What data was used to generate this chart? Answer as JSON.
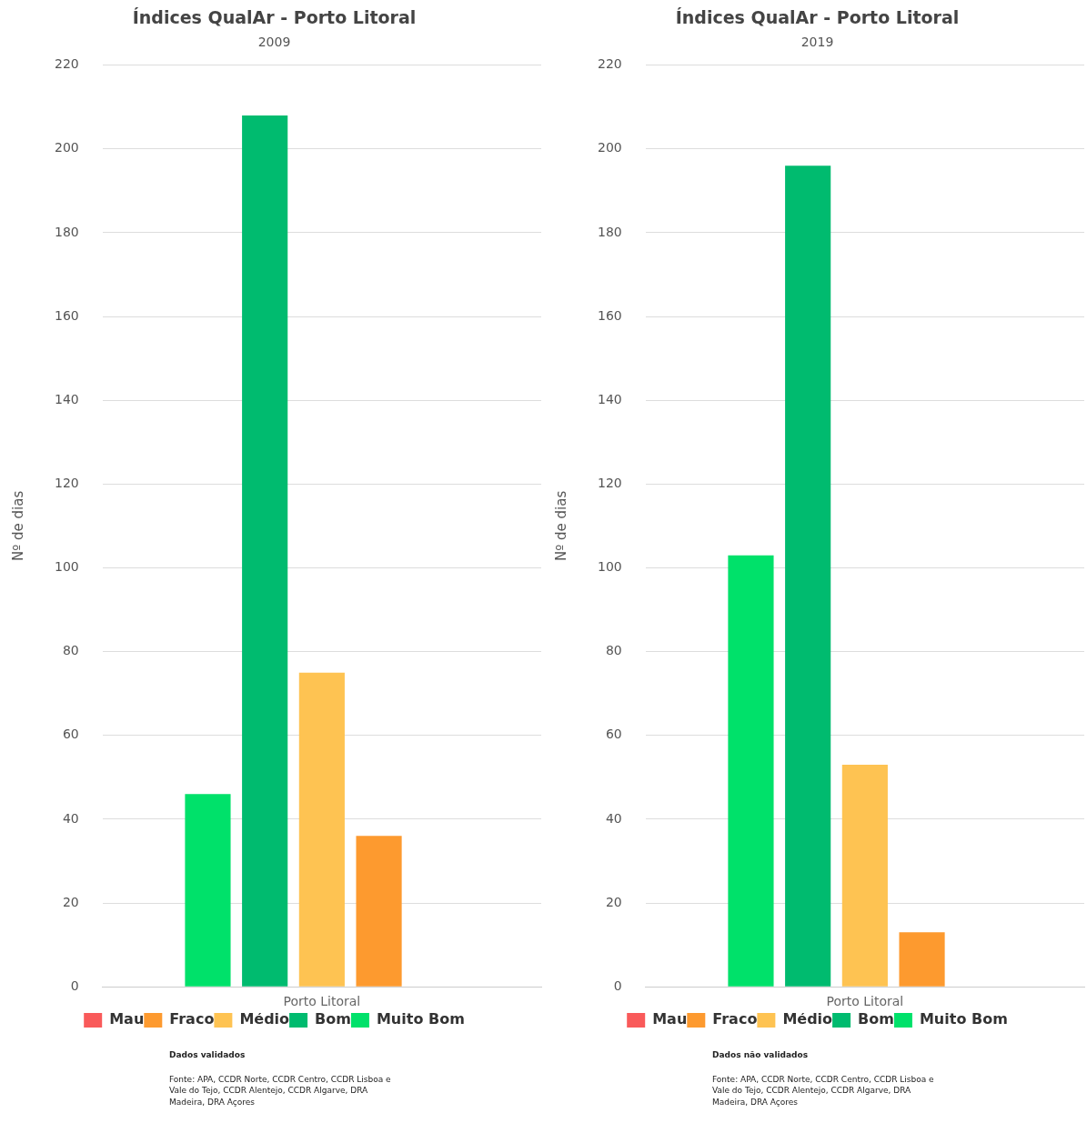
{
  "chart_data": [
    {
      "type": "bar",
      "title": "Índices QualAr - Porto Litoral",
      "subtitle": "2009",
      "ylabel": "Nº de dias",
      "categories": [
        "Porto Litoral"
      ],
      "series": [
        {
          "name": "Muito Bom",
          "color": "#00e16a",
          "values": [
            46
          ]
        },
        {
          "name": "Bom",
          "color": "#00bb6f",
          "values": [
            208
          ]
        },
        {
          "name": "Médio",
          "color": "#fec352",
          "values": [
            75
          ]
        },
        {
          "name": "Fraco",
          "color": "#fd9a2f",
          "values": [
            36
          ]
        },
        {
          "name": "Mau",
          "color": "#f95a5a",
          "values": [
            0
          ]
        }
      ],
      "ylim": [
        0,
        220
      ],
      "yticks": [
        0,
        20,
        40,
        60,
        80,
        100,
        120,
        140,
        160,
        180,
        200,
        220
      ],
      "grid": "y",
      "legend": "bottom",
      "annotations": [
        "Dados validados",
        "Fonte: APA, CCDR Norte, CCDR Centro, CCDR Lisboa e Vale do Tejo, CCDR Alentejo, CCDR Algarve, DRA Madeira, DRA Açores"
      ]
    },
    {
      "type": "bar",
      "title": "Índices QualAr - Porto Litoral",
      "subtitle": "2019",
      "ylabel": "Nº de dias",
      "categories": [
        "Porto Litoral"
      ],
      "series": [
        {
          "name": "Muito Bom",
          "color": "#00e16a",
          "values": [
            103
          ]
        },
        {
          "name": "Bom",
          "color": "#00bb6f",
          "values": [
            196
          ]
        },
        {
          "name": "Médio",
          "color": "#fec352",
          "values": [
            53
          ]
        },
        {
          "name": "Fraco",
          "color": "#fd9a2f",
          "values": [
            13
          ]
        },
        {
          "name": "Mau",
          "color": "#f95a5a",
          "values": [
            0
          ]
        }
      ],
      "ylim": [
        0,
        220
      ],
      "yticks": [
        0,
        20,
        40,
        60,
        80,
        100,
        120,
        140,
        160,
        180,
        200,
        220
      ],
      "grid": "y",
      "legend": "bottom",
      "annotations": [
        "Dados não validados",
        "Fonte: APA, CCDR Norte, CCDR Centro, CCDR Lisboa e Vale do Tejo, CCDR Alentejo, CCDR Algarve, DRA Madeira, DRA Açores"
      ]
    }
  ]
}
